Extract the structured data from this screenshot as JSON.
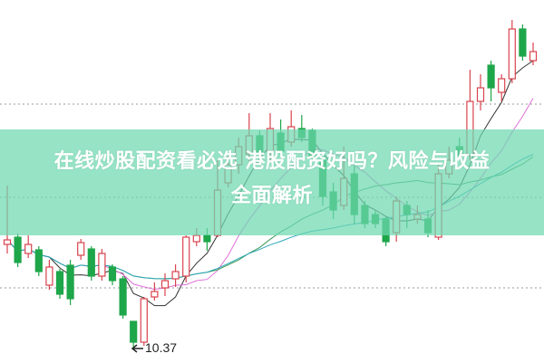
{
  "headline": {
    "line1": "在线炒股配资看必选 港股配资好吗？风险与收益",
    "line2": "全面解析"
  },
  "chart_data": {
    "type": "candlestick",
    "low_marker_label": "10.37",
    "colors": {
      "up": "#d9434e",
      "down": "#1ea64a",
      "band": "#93e0c3"
    },
    "candles": [
      [
        11.52,
        11.57,
        12.17,
        11.42
      ],
      [
        11.6,
        11.32,
        11.64,
        11.27
      ],
      [
        11.42,
        11.52,
        11.62,
        11.37
      ],
      [
        11.46,
        11.22,
        11.5,
        11.17
      ],
      [
        11.07,
        11.27,
        11.35,
        11.02
      ],
      [
        11.22,
        10.97,
        11.25,
        10.92
      ],
      [
        11.29,
        10.92,
        11.35,
        10.85
      ],
      [
        11.4,
        11.54,
        11.58,
        11.35
      ],
      [
        11.47,
        11.17,
        11.5,
        11.12
      ],
      [
        11.17,
        11.42,
        11.47,
        11.12
      ],
      [
        11.27,
        11.12,
        11.3,
        11.07
      ],
      [
        11.14,
        10.74,
        11.17,
        10.7
      ],
      [
        10.67,
        10.44,
        10.67,
        10.37
      ],
      [
        10.44,
        10.92,
        10.94,
        10.4
      ],
      [
        10.94,
        11.0,
        11.1,
        10.9
      ],
      [
        11.04,
        11.12,
        11.2,
        10.95
      ],
      [
        11.14,
        11.22,
        11.3,
        11.05
      ],
      [
        11.17,
        11.6,
        11.62,
        11.1
      ],
      [
        11.55,
        11.62,
        11.7,
        11.5
      ],
      [
        11.62,
        11.55,
        11.7,
        11.45
      ],
      [
        11.62,
        12.12,
        12.45,
        11.6
      ],
      [
        12.2,
        12.4,
        12.52,
        12.15
      ],
      [
        12.4,
        12.6,
        12.7,
        12.3
      ],
      [
        12.52,
        12.72,
        12.97,
        12.4
      ],
      [
        12.72,
        12.52,
        12.78,
        12.45
      ],
      [
        12.55,
        12.8,
        12.97,
        12.45
      ],
      [
        12.75,
        12.55,
        12.9,
        12.5
      ],
      [
        12.65,
        12.82,
        13.0,
        12.6
      ],
      [
        12.8,
        12.7,
        12.95,
        12.65
      ],
      [
        12.78,
        12.5,
        12.8,
        12.45
      ],
      [
        12.45,
        12.05,
        12.5,
        11.95
      ],
      [
        12.1,
        11.9,
        12.2,
        11.8
      ],
      [
        11.95,
        12.25,
        12.6,
        11.9
      ],
      [
        12.3,
        11.85,
        12.4,
        11.75
      ],
      [
        11.95,
        11.75,
        12.0,
        11.7
      ],
      [
        11.85,
        11.75,
        11.9,
        11.7
      ],
      [
        11.8,
        11.55,
        11.82,
        11.5
      ],
      [
        11.65,
        12.0,
        12.05,
        11.55
      ],
      [
        11.95,
        11.85,
        12.0,
        11.7
      ],
      [
        11.8,
        11.85,
        11.95,
        11.75
      ],
      [
        11.8,
        11.65,
        11.9,
        11.6
      ],
      [
        11.6,
        12.3,
        12.4,
        11.57
      ],
      [
        12.3,
        12.45,
        12.6,
        12.25
      ],
      [
        12.6,
        12.5,
        12.7,
        12.45
      ],
      [
        12.5,
        13.1,
        13.45,
        12.45
      ],
      [
        13.1,
        13.25,
        13.4,
        13.0
      ],
      [
        13.5,
        13.25,
        13.55,
        13.1
      ],
      [
        13.2,
        13.35,
        13.4,
        13.1
      ],
      [
        13.35,
        13.9,
        14.0,
        13.3
      ],
      [
        13.9,
        13.6,
        13.95,
        13.55
      ],
      [
        13.55,
        13.65,
        13.75,
        13.5
      ]
    ]
  }
}
